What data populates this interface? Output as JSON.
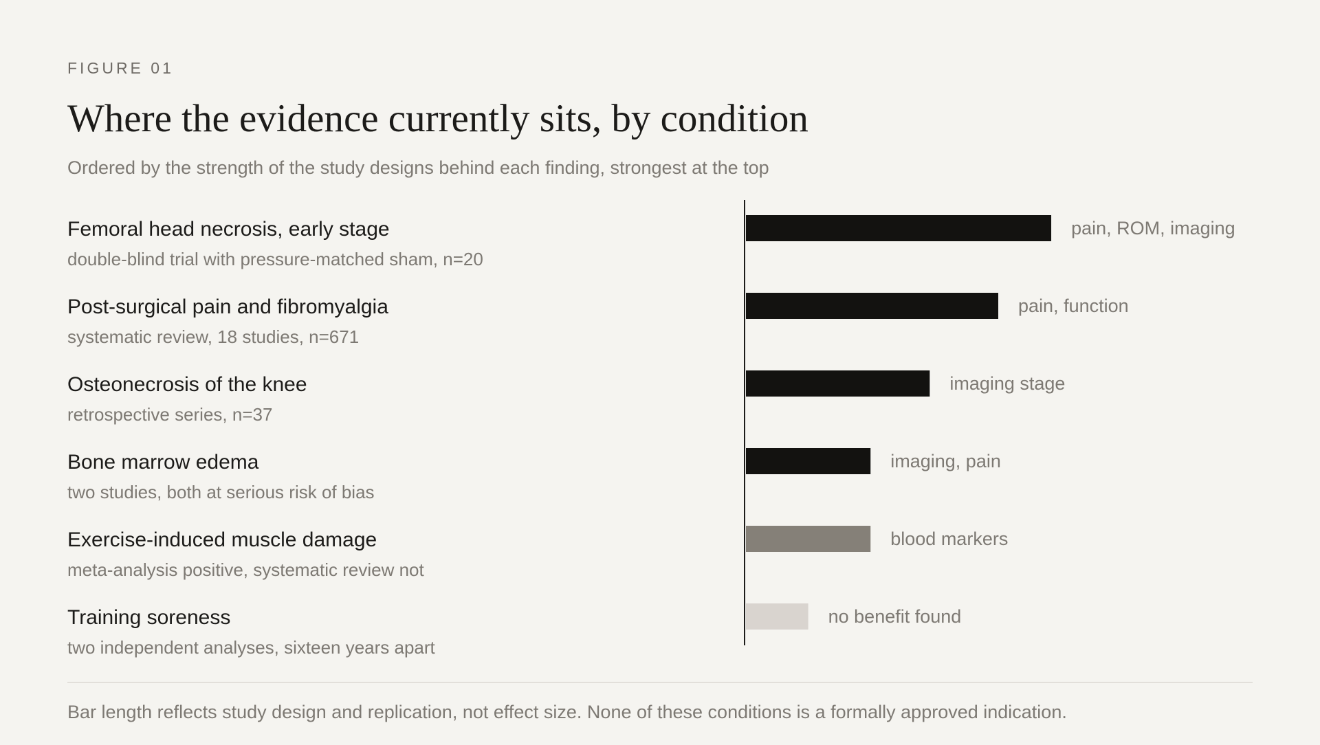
{
  "chart_data": {
    "type": "bar",
    "orientation": "horizontal",
    "eyebrow": "FIGURE 01",
    "title": "Where the evidence currently sits, by condition",
    "subtitle": "Ordered by the strength of the study designs behind each finding, strongest at the top",
    "categories": [
      "Femoral head necrosis, early stage",
      "Post-surgical pain and fibromyalgia",
      "Osteonecrosis of the knee",
      "Bone marrow edema",
      "Exercise-induced muscle damage",
      "Training soreness"
    ],
    "notes": [
      "double-blind trial with pressure-matched sham, n=20",
      "systematic review, 18 studies, n=671",
      "retrospective series, n=37",
      "two studies, both at serious risk of bias",
      "meta-analysis positive, systematic review not",
      "two independent analyses, sixteen years apart"
    ],
    "outcomes": [
      "pain, ROM, imaging",
      "pain, function",
      "imaging stage",
      "imaging, pain",
      "blood markers",
      "no benefit found"
    ],
    "values": [
      4.9,
      4.05,
      2.95,
      2,
      2,
      1
    ],
    "colors": [
      "#131210",
      "#131210",
      "#131210",
      "#131210",
      "#858078",
      "#d9d4cf"
    ],
    "xlim": [
      0,
      8
    ],
    "footnote": "Bar length reflects study design and replication, not effect size. None of these conditions is a formally approved indication."
  }
}
